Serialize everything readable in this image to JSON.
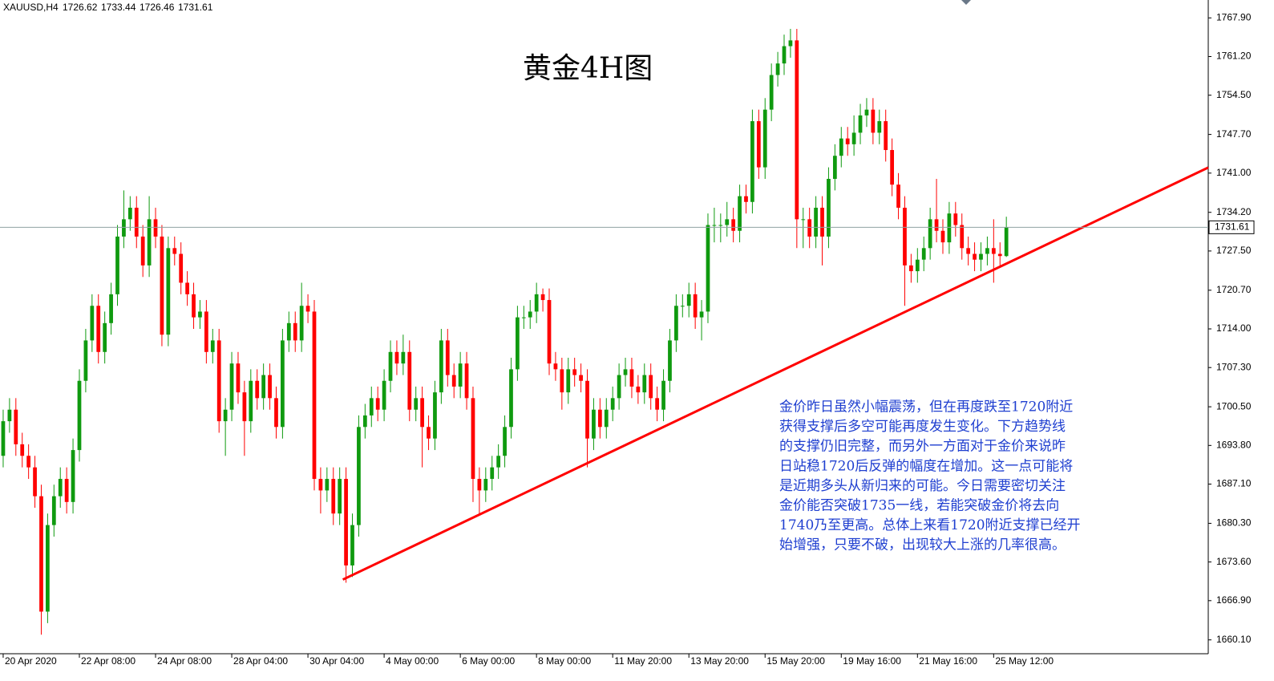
{
  "chart_data": {
    "type": "candlestick",
    "symbol": "XAUUSD,H4",
    "title": "黄金4H图",
    "annotation": [
      "金价昨日虽然小幅震荡，但在再度跌至1720附近",
      "获得支撑后多空可能再度发生变化。下方趋势线",
      "的支撑仍旧完整，而另外一方面对于金价来说昨",
      "日站稳1720后反弹的幅度在增加。这一点可能将",
      "是近期多头从新归来的可能。今日需要密切关注",
      "金价能否突破1735一线，若能突破金价将去向",
      "1740乃至更高。总体上来看1720附近支撑已经开",
      "始增强，只要不破，出现较大上涨的几率很高。"
    ],
    "up_color": "#0f9a0f",
    "down_color": "#ff0000",
    "price_line_color": "#8fa3a3",
    "open": [
      1692,
      1698,
      1700,
      1694,
      1692,
      1690,
      1685,
      1665,
      1680,
      1685,
      1688,
      1684,
      1693,
      1705,
      1712,
      1718,
      1710,
      1715,
      1720,
      1730,
      1733,
      1735,
      1730,
      1725,
      1733,
      1730,
      1713,
      1728,
      1727,
      1722,
      1720,
      1716,
      1717,
      1710,
      1712,
      1698,
      1700,
      1708,
      1703,
      1698,
      1705,
      1702,
      1706,
      1702,
      1697,
      1712,
      1715,
      1712,
      1718,
      1717,
      1688,
      1686,
      1688,
      1682,
      1688,
      1673,
      1680,
      1697,
      1699,
      1702,
      1700,
      1705,
      1710,
      1708,
      1710,
      1700,
      1702,
      1697,
      1695,
      1703,
      1712,
      1706,
      1704,
      1708,
      1702,
      1688,
      1686,
      1688,
      1690,
      1692,
      1697,
      1707,
      1716,
      1716,
      1717,
      1720,
      1719,
      1708,
      1707,
      1703,
      1707,
      1706,
      1705,
      1695,
      1700,
      1697,
      1700,
      1702,
      1706,
      1707,
      1704,
      1703,
      1706,
      1702,
      1700,
      1705,
      1712,
      1718,
      1718,
      1720,
      1716,
      1717,
      1732,
      1732,
      1732,
      1733,
      1731,
      1737,
      1736,
      1750,
      1742,
      1752,
      1758,
      1760,
      1763,
      1764,
      1733,
      1733,
      1730,
      1735,
      1730,
      1740,
      1744,
      1747,
      1746,
      1748,
      1751,
      1752,
      1748,
      1750,
      1745,
      1739,
      1735,
      1725,
      1724,
      1726,
      1728,
      1733,
      1731,
      1729,
      1734,
      1732,
      1728,
      1727,
      1726,
      1727,
      1728,
      1727,
      1726.62
    ],
    "high": [
      1700,
      1702,
      1702,
      1696,
      1694,
      1692,
      1687,
      1682,
      1687,
      1690,
      1690,
      1695,
      1707,
      1714,
      1720,
      1720,
      1717,
      1722,
      1732,
      1738,
      1737,
      1737,
      1732,
      1737,
      1735,
      1732,
      1730,
      1730,
      1729,
      1724,
      1722,
      1719,
      1719,
      1714,
      1714,
      1702,
      1710,
      1710,
      1705,
      1707,
      1707,
      1708,
      1708,
      1704,
      1714,
      1717,
      1717,
      1722,
      1720,
      1719,
      1690,
      1690,
      1690,
      1690,
      1690,
      1682,
      1699,
      1701,
      1704,
      1704,
      1707,
      1712,
      1712,
      1713,
      1712,
      1704,
      1704,
      1699,
      1705,
      1714,
      1714,
      1708,
      1710,
      1710,
      1704,
      1690,
      1690,
      1692,
      1694,
      1699,
      1709,
      1718,
      1718,
      1719,
      1722,
      1721,
      1721,
      1710,
      1709,
      1709,
      1709,
      1708,
      1707,
      1702,
      1702,
      1702,
      1704,
      1708,
      1709,
      1709,
      1706,
      1708,
      1708,
      1704,
      1707,
      1714,
      1720,
      1720,
      1722,
      1722,
      1719,
      1734,
      1735,
      1734,
      1736,
      1735,
      1739,
      1739,
      1752,
      1752,
      1754,
      1760,
      1762,
      1765,
      1766,
      1766,
      1735,
      1735,
      1737,
      1737,
      1742,
      1746,
      1749,
      1749,
      1751,
      1753,
      1754,
      1754,
      1752,
      1752,
      1747,
      1741,
      1737,
      1727,
      1728,
      1730,
      1735,
      1740,
      1733,
      1736,
      1736,
      1734,
      1730,
      1729,
      1729,
      1730,
      1733,
      1729,
      1733.44
    ],
    "low": [
      1690,
      1696,
      1692,
      1690,
      1688,
      1683,
      1661,
      1663,
      1678,
      1683,
      1682,
      1682,
      1691,
      1703,
      1710,
      1708,
      1708,
      1713,
      1718,
      1728,
      1731,
      1728,
      1723,
      1723,
      1728,
      1711,
      1711,
      1725,
      1720,
      1718,
      1714,
      1714,
      1708,
      1708,
      1696,
      1692,
      1698,
      1701,
      1692,
      1696,
      1700,
      1700,
      1700,
      1695,
      1695,
      1710,
      1710,
      1710,
      1715,
      1686,
      1682,
      1684,
      1680,
      1680,
      1670,
      1671,
      1678,
      1695,
      1697,
      1698,
      1698,
      1703,
      1706,
      1706,
      1698,
      1698,
      1690,
      1693,
      1693,
      1701,
      1704,
      1702,
      1702,
      1700,
      1684,
      1682,
      1684,
      1686,
      1688,
      1690,
      1695,
      1705,
      1714,
      1714,
      1715,
      1717,
      1706,
      1705,
      1700,
      1701,
      1704,
      1703,
      1690,
      1693,
      1695,
      1695,
      1698,
      1700,
      1704,
      1702,
      1701,
      1701,
      1700,
      1698,
      1698,
      1703,
      1710,
      1716,
      1716,
      1714,
      1712,
      1715,
      1729,
      1729,
      1730,
      1729,
      1729,
      1734,
      1734,
      1740,
      1740,
      1750,
      1756,
      1758,
      1761,
      1728,
      1728,
      1728,
      1728,
      1725,
      1728,
      1738,
      1742,
      1744,
      1744,
      1746,
      1749,
      1746,
      1746,
      1743,
      1737,
      1733,
      1718,
      1722,
      1722,
      1724,
      1726,
      1729,
      1727,
      1727,
      1730,
      1726,
      1725,
      1724,
      1724,
      1725,
      1722,
      1725,
      1726.46
    ],
    "close": [
      1698,
      1700,
      1694,
      1692,
      1690,
      1685,
      1665,
      1680,
      1685,
      1688,
      1684,
      1693,
      1705,
      1712,
      1718,
      1710,
      1715,
      1720,
      1730,
      1733,
      1735,
      1730,
      1725,
      1733,
      1730,
      1713,
      1728,
      1727,
      1722,
      1720,
      1716,
      1717,
      1710,
      1712,
      1698,
      1700,
      1708,
      1703,
      1698,
      1705,
      1702,
      1706,
      1702,
      1697,
      1712,
      1715,
      1712,
      1718,
      1717,
      1688,
      1686,
      1688,
      1682,
      1688,
      1673,
      1680,
      1697,
      1699,
      1702,
      1700,
      1705,
      1710,
      1708,
      1710,
      1700,
      1702,
      1697,
      1695,
      1703,
      1712,
      1706,
      1704,
      1708,
      1702,
      1688,
      1686,
      1688,
      1690,
      1692,
      1697,
      1707,
      1716,
      1716,
      1717,
      1720,
      1719,
      1708,
      1707,
      1703,
      1707,
      1706,
      1705,
      1695,
      1700,
      1697,
      1700,
      1702,
      1706,
      1707,
      1704,
      1703,
      1706,
      1702,
      1700,
      1705,
      1712,
      1718,
      1718,
      1720,
      1716,
      1717,
      1732,
      1732,
      1732,
      1733,
      1731,
      1737,
      1736,
      1750,
      1742,
      1752,
      1758,
      1760,
      1763,
      1764,
      1733,
      1733,
      1730,
      1735,
      1730,
      1740,
      1744,
      1747,
      1746,
      1748,
      1751,
      1752,
      1748,
      1750,
      1745,
      1739,
      1735,
      1725,
      1724,
      1726,
      1728,
      1733,
      1731,
      1729,
      1734,
      1732,
      1728,
      1727,
      1726,
      1727,
      1728,
      1727,
      1726.62,
      1731.61
    ],
    "trendline": {
      "x": [
        53.5,
        189.8
      ],
      "y": [
        1670.55,
        1741.96
      ],
      "color": "#ff0000"
    },
    "xlim": [
      -0.5,
      189.8
    ],
    "xticks": [
      {
        "value": 0,
        "label": "20 Apr 2020"
      },
      {
        "value": 12,
        "label": "22 Apr 08:00"
      },
      {
        "value": 24,
        "label": "24 Apr 08:00"
      },
      {
        "value": 36,
        "label": "28 Apr 04:00"
      },
      {
        "value": 48,
        "label": "30 Apr 04:00"
      },
      {
        "value": 60,
        "label": "4 May 00:00"
      },
      {
        "value": 72,
        "label": "6 May 00:00"
      },
      {
        "value": 84,
        "label": "8 May 00:00"
      },
      {
        "value": 96,
        "label": "11 May 20:00"
      },
      {
        "value": 108,
        "label": "13 May 20:00"
      },
      {
        "value": 120,
        "label": "15 May 20:00"
      },
      {
        "value": 132,
        "label": "19 May 16:00"
      },
      {
        "value": 144,
        "label": "21 May 16:00"
      },
      {
        "value": 156,
        "label": "25 May 12:00"
      }
    ],
    "ylim": [
      1657.7,
      1771.0
    ],
    "yticks": [
      {
        "value": 1767.9,
        "label": "1767.90"
      },
      {
        "value": 1761.2,
        "label": "1761.20"
      },
      {
        "value": 1754.5,
        "label": "1754.50"
      },
      {
        "value": 1747.7,
        "label": "1747.70"
      },
      {
        "value": 1741,
        "label": "1741.00"
      },
      {
        "value": 1734.2,
        "label": "1734.20"
      },
      {
        "value": 1727.5,
        "label": "1727.50"
      },
      {
        "value": 1720.7,
        "label": "1720.70"
      },
      {
        "value": 1714,
        "label": "1714.00"
      },
      {
        "value": 1707.3,
        "label": "1707.30"
      },
      {
        "value": 1700.5,
        "label": "1700.50"
      },
      {
        "value": 1693.8,
        "label": "1693.80"
      },
      {
        "value": 1687.1,
        "label": "1687.10"
      },
      {
        "value": 1680.3,
        "label": "1680.30"
      },
      {
        "value": 1673.6,
        "label": "1673.60"
      },
      {
        "value": 1666.9,
        "label": "1666.90"
      },
      {
        "value": 1660.1,
        "label": "1660.10"
      }
    ]
  }
}
